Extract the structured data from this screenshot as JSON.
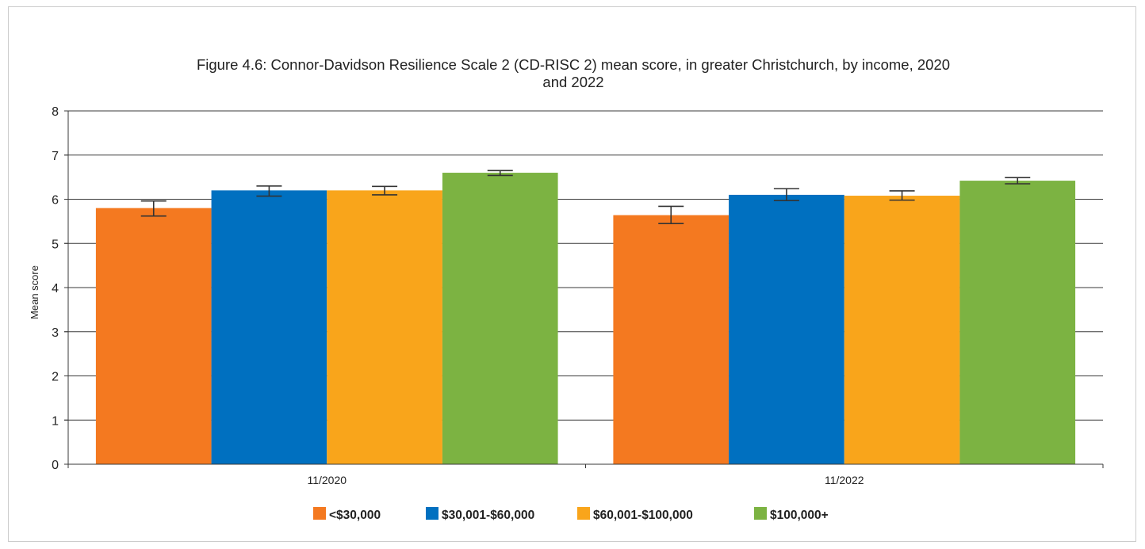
{
  "chart_data": {
    "type": "bar",
    "title_line1": "Figure 4.6: Connor-Davidson Resilience Scale 2 (CD-RISC 2) mean score, in greater Christchurch, by income, 2020",
    "title_line2": "and 2022",
    "ylabel": "Mean score",
    "xlabel": "",
    "ylim": [
      0,
      8
    ],
    "yticks": [
      "0",
      "1",
      "2",
      "3",
      "4",
      "5",
      "6",
      "7",
      "8"
    ],
    "grid": true,
    "legend_position": "bottom",
    "categories": [
      "11/2020",
      "11/2022"
    ],
    "series": [
      {
        "name": "<$30,000",
        "color": "#f47920",
        "values": [
          5.8,
          5.64
        ],
        "err_low": [
          5.62,
          5.45
        ],
        "err_high": [
          5.96,
          5.84
        ]
      },
      {
        "name": "$30,001-$60,000",
        "color": "#0070c0",
        "values": [
          6.2,
          6.1
        ],
        "err_low": [
          6.07,
          5.97
        ],
        "err_high": [
          6.3,
          6.24
        ]
      },
      {
        "name": "$60,001-$100,000",
        "color": "#f9a51b",
        "values": [
          6.2,
          6.08
        ],
        "err_low": [
          6.1,
          5.98
        ],
        "err_high": [
          6.29,
          6.19
        ]
      },
      {
        "name": "$100,000+",
        "color": "#7cb342",
        "values": [
          6.6,
          6.42
        ],
        "err_low": [
          6.54,
          6.35
        ],
        "err_high": [
          6.65,
          6.49
        ]
      }
    ]
  }
}
